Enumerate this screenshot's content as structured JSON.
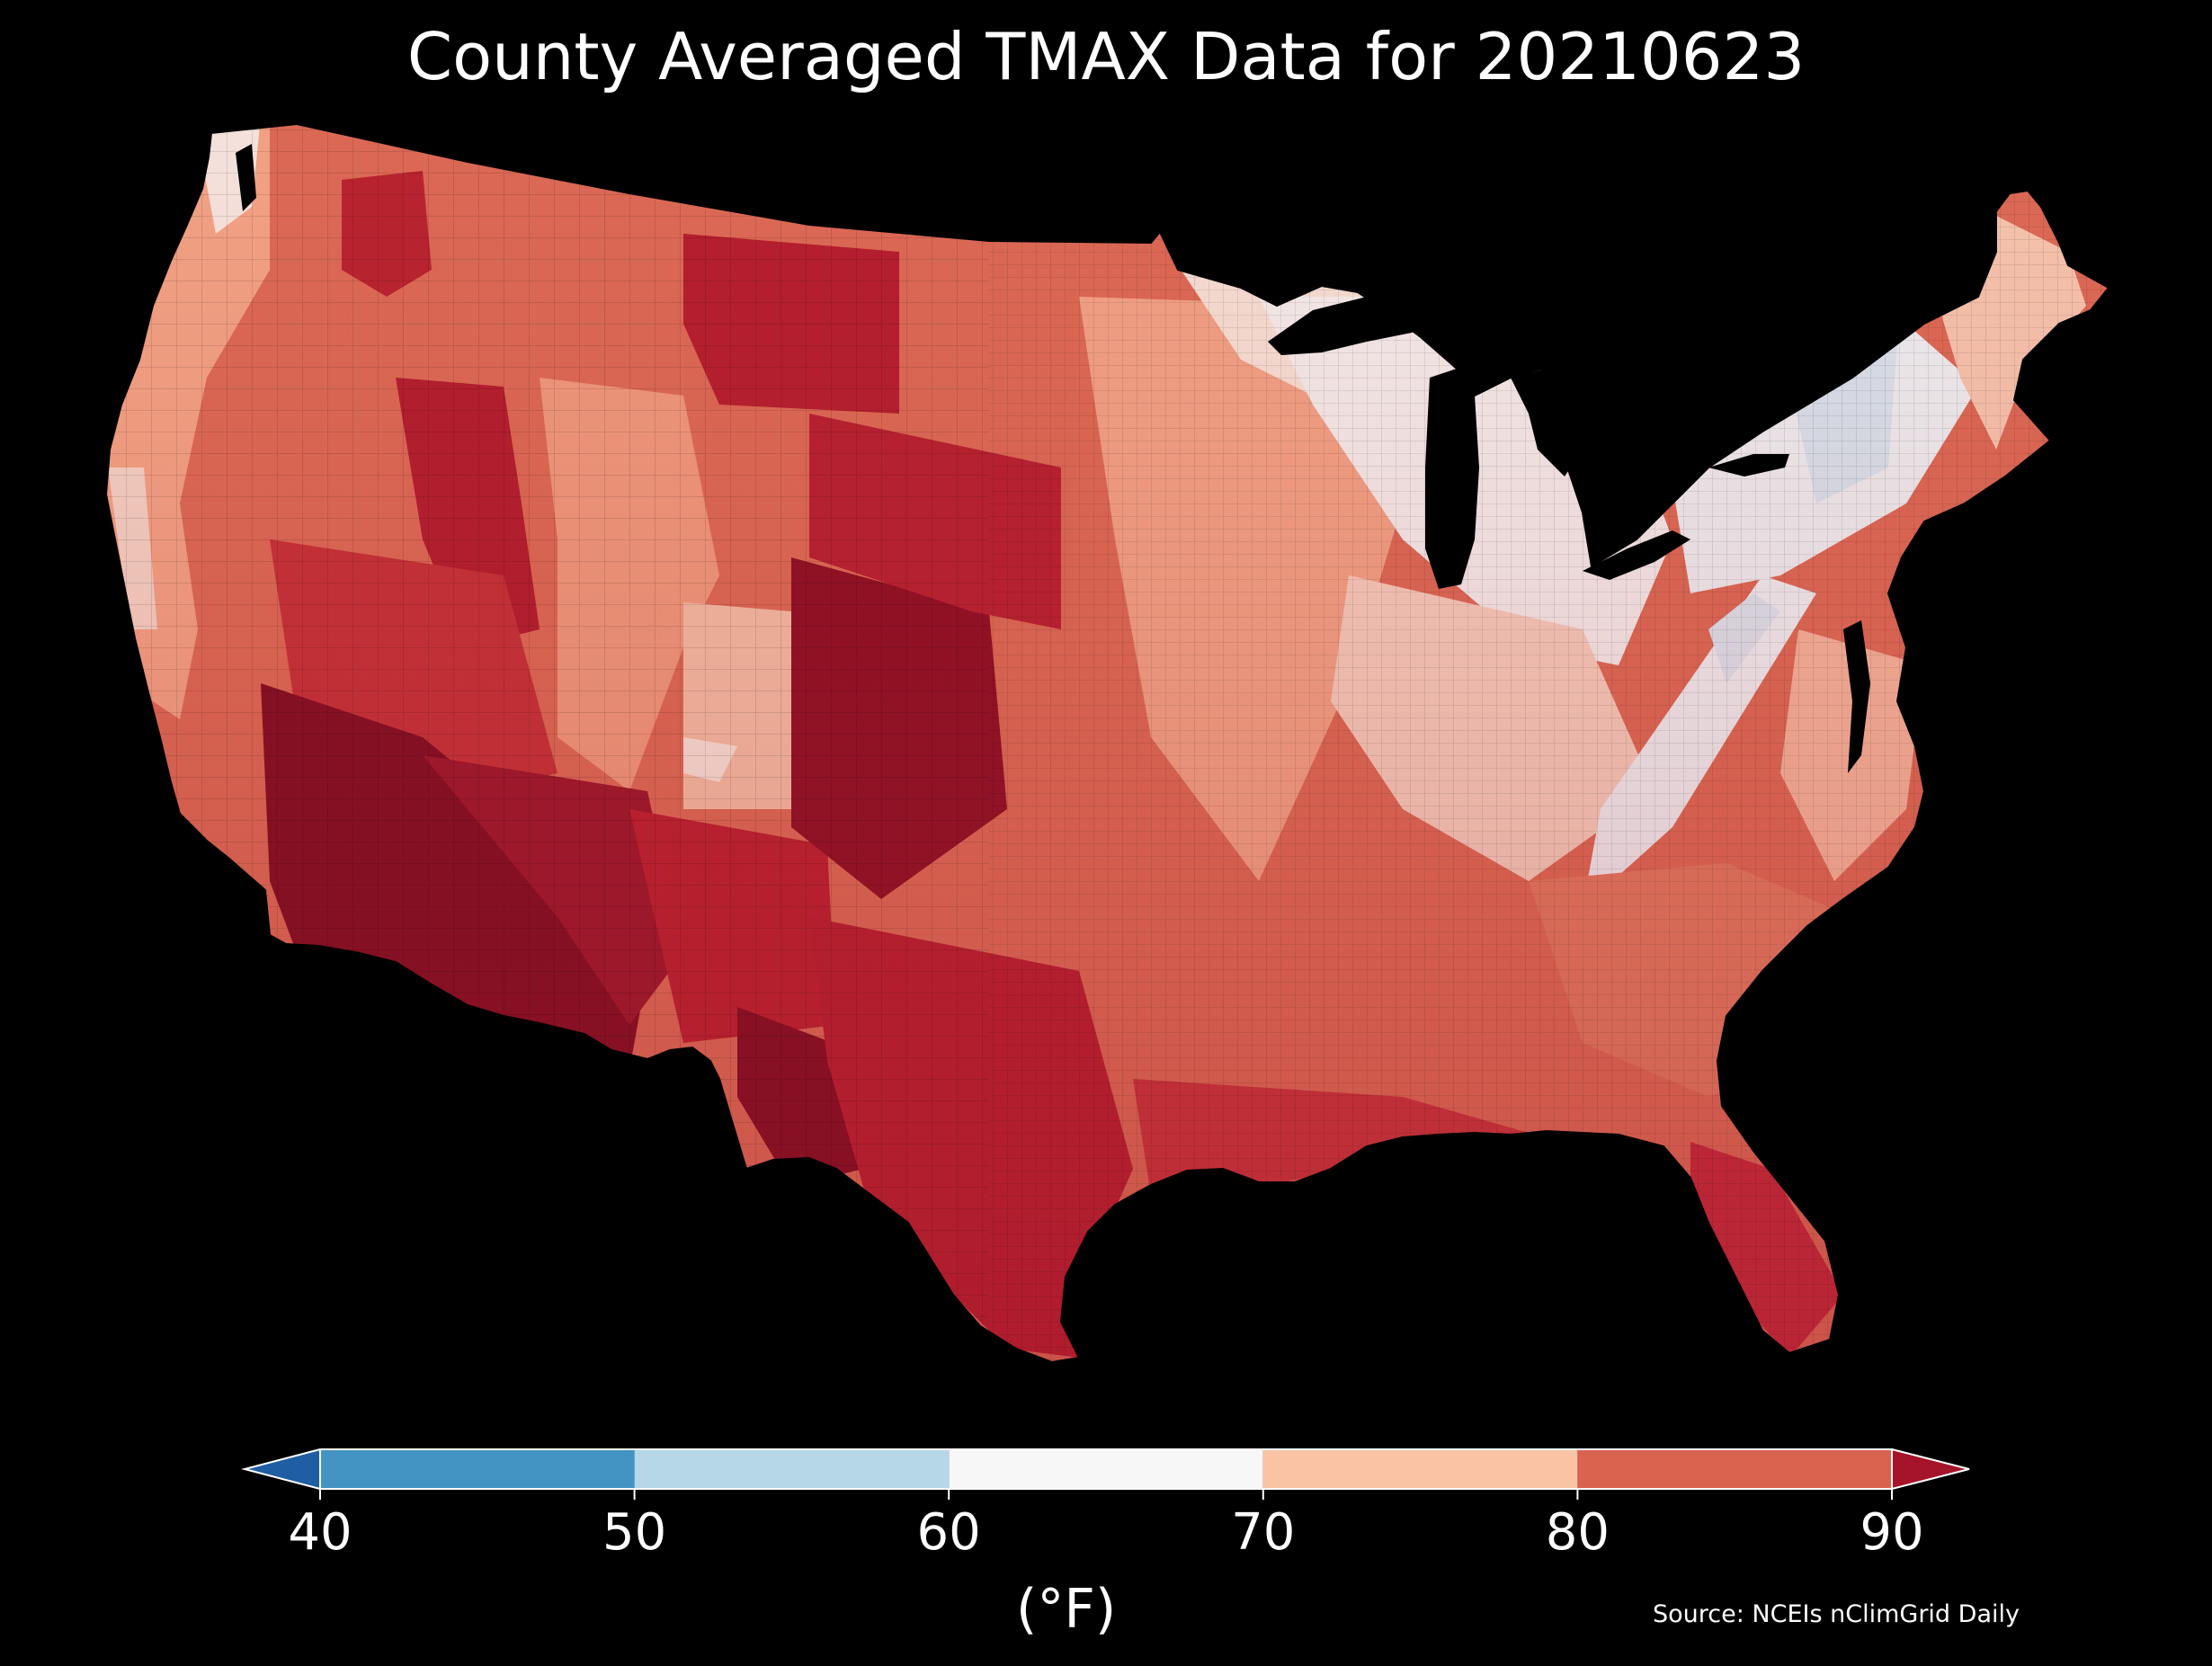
{
  "title": "County Averaged TMAX Data for 20210623",
  "colorbar": {
    "ticks": [
      {
        "value": 40,
        "label": "40"
      },
      {
        "value": 50,
        "label": "50"
      },
      {
        "value": 60,
        "label": "60"
      },
      {
        "value": 70,
        "label": "70"
      },
      {
        "value": 80,
        "label": "80"
      },
      {
        "value": 90,
        "label": "90"
      }
    ],
    "bins": [
      {
        "from": 40,
        "to": 50,
        "color": "#4393c3"
      },
      {
        "from": 50,
        "to": 60,
        "color": "#b6d7e8"
      },
      {
        "from": 60,
        "to": 70,
        "color": "#f7f7f7"
      },
      {
        "from": 70,
        "to": 80,
        "color": "#f9c3a4"
      },
      {
        "from": 80,
        "to": 90,
        "color": "#d9634f"
      }
    ],
    "under_color": "#1f5ea2",
    "over_color": "#a51428",
    "unit": "(°F)"
  },
  "source": "Source: NCEIs nClimGrid Daily",
  "map": {
    "region": "Contiguous United States",
    "units": "counties",
    "colors": {
      "hottest": "#7a0a1e",
      "hot": "#b31a2b",
      "warm": "#d45a4a",
      "mild": "#f0a080",
      "cool": "#f4f2f1",
      "coolest": "#d2e4f0"
    }
  }
}
